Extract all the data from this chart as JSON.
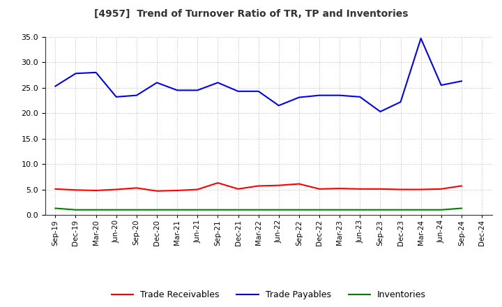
{
  "title": "[4957]  Trend of Turnover Ratio of TR, TP and Inventories",
  "x_labels": [
    "Sep-19",
    "Dec-19",
    "Mar-20",
    "Jun-20",
    "Sep-20",
    "Dec-20",
    "Mar-21",
    "Jun-21",
    "Sep-21",
    "Dec-21",
    "Mar-22",
    "Jun-22",
    "Sep-22",
    "Dec-22",
    "Mar-23",
    "Jun-23",
    "Sep-23",
    "Dec-23",
    "Mar-24",
    "Jun-24",
    "Sep-24",
    "Dec-24"
  ],
  "trade_receivables": [
    5.1,
    4.9,
    4.8,
    5.0,
    5.3,
    4.7,
    4.8,
    5.0,
    6.3,
    5.1,
    5.7,
    5.8,
    6.1,
    5.1,
    5.2,
    5.1,
    5.1,
    5.0,
    5.0,
    5.1,
    5.7,
    null
  ],
  "trade_payables": [
    25.3,
    27.8,
    28.0,
    23.2,
    23.5,
    26.0,
    24.5,
    24.5,
    26.0,
    24.3,
    24.3,
    21.5,
    23.1,
    23.5,
    23.5,
    23.2,
    20.3,
    22.2,
    34.7,
    25.5,
    26.3,
    null
  ],
  "inventories": [
    1.3,
    1.0,
    1.0,
    1.0,
    1.0,
    1.0,
    1.0,
    1.0,
    1.0,
    1.0,
    1.0,
    1.0,
    1.0,
    1.0,
    1.0,
    1.0,
    1.0,
    1.0,
    1.0,
    1.0,
    1.3,
    null
  ],
  "ylim": [
    0.0,
    35.0
  ],
  "yticks": [
    0.0,
    5.0,
    10.0,
    15.0,
    20.0,
    25.0,
    30.0,
    35.0
  ],
  "color_tr": "#ff0000",
  "color_tp": "#0000ff",
  "color_inv": "#008000",
  "legend_labels": [
    "Trade Receivables",
    "Trade Payables",
    "Inventories"
  ],
  "background_color": "#ffffff",
  "grid_color": "#aaaaaa"
}
